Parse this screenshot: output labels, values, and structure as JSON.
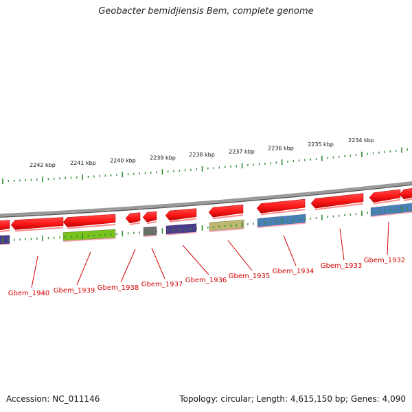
{
  "title": "Geobacter bemidjiensis Bem, complete genome",
  "footer": {
    "accession": "Accession: NC_011146",
    "summary": "Topology: circular; Length: 4,615,150 bp; Genes: 4,090"
  },
  "colors": {
    "backbone": "#8a8a8a",
    "tick": "#2e8b2e",
    "gene_forward": "#ff1a1a",
    "label": "#d40000",
    "cog_purple": "#4b3c8c",
    "cog_green": "#7ac21e",
    "cog_gray": "#6e6e6e",
    "cog_khaki": "#bdb870",
    "cog_blue": "#4a7fb8"
  },
  "scale_labels": [
    "2242 kbp",
    "2241 kbp",
    "2240 kbp",
    "2239 kbp",
    "2238 kbp",
    "2237 kbp",
    "2236 kbp",
    "2235 kbp",
    "2234 kbp"
  ],
  "genes": [
    {
      "label": "Gbem_1940"
    },
    {
      "label": "Gbem_1939",
      "cog_color": "#7ac21e"
    },
    {
      "label": "Gbem_1938"
    },
    {
      "label": "Gbem_1937",
      "cog_color": "#6e6e6e"
    },
    {
      "label": "Gbem_1936",
      "cog_color": "#4b3c8c"
    },
    {
      "label": "Gbem_1935",
      "cog_color": "#bdb870"
    },
    {
      "label": "Gbem_1934",
      "cog_color": "#4a7fb8"
    },
    {
      "label": "Gbem_1933"
    },
    {
      "label": "Gbem_1932",
      "cog_color": "#4a7fb8"
    }
  ]
}
